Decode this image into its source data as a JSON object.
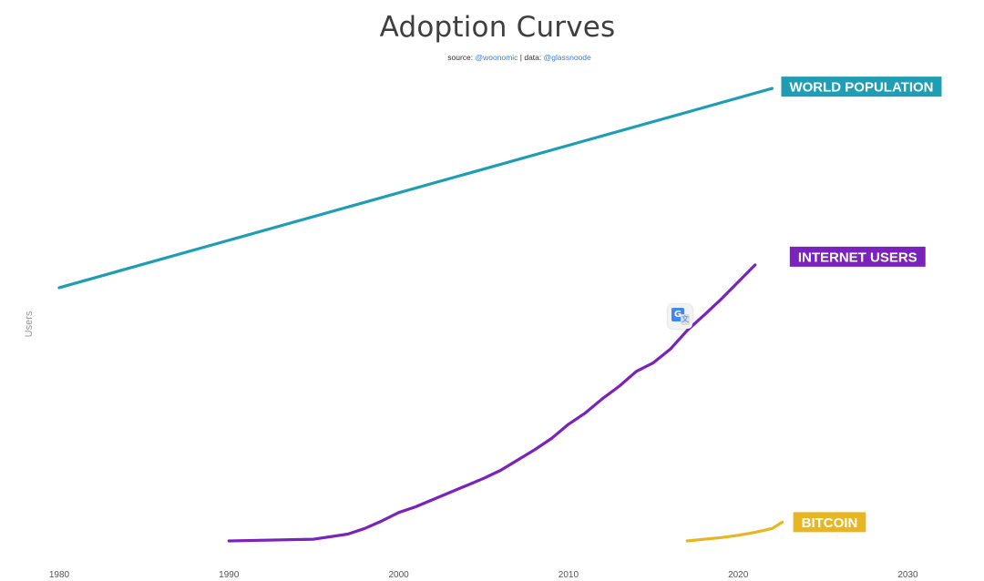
{
  "chart_data": {
    "type": "line",
    "title": "Adoption Curves",
    "source": {
      "prefix": "source: ",
      "author": "@woonomic",
      "separator": " | data: ",
      "data_provider": "@glassnoode"
    },
    "ylabel": "Users",
    "xlabel": "",
    "xlim": [
      1980,
      2030
    ],
    "x_ticks": [
      1980,
      1990,
      2000,
      2010,
      2020,
      2030
    ],
    "y_axis_tick_labels_shown": false,
    "grid": false,
    "legend": "direct labels at line ends",
    "series": [
      {
        "name": "WORLD POPULATION",
        "color": "#1e9db5",
        "points": [
          [
            1980,
            4.45
          ],
          [
            2022,
            7.95
          ]
        ]
      },
      {
        "name": "INTERNET USERS",
        "color": "#7b22bd",
        "points": [
          [
            1990,
            0.0
          ],
          [
            1995,
            0.03
          ],
          [
            1997,
            0.12
          ],
          [
            1998,
            0.22
          ],
          [
            1999,
            0.35
          ],
          [
            2000,
            0.5
          ],
          [
            2001,
            0.6
          ],
          [
            2003,
            0.85
          ],
          [
            2005,
            1.1
          ],
          [
            2006,
            1.24
          ],
          [
            2008,
            1.6
          ],
          [
            2009,
            1.8
          ],
          [
            2010,
            2.05
          ],
          [
            2011,
            2.25
          ],
          [
            2012,
            2.5
          ],
          [
            2013,
            2.72
          ],
          [
            2014,
            2.98
          ],
          [
            2015,
            3.13
          ],
          [
            2016,
            3.37
          ],
          [
            2017,
            3.7
          ],
          [
            2018,
            3.97
          ],
          [
            2019,
            4.25
          ],
          [
            2020,
            4.55
          ],
          [
            2021,
            4.85
          ]
        ]
      },
      {
        "name": "BITCOIN",
        "color": "#e9b623",
        "points": [
          [
            2017,
            0.0
          ],
          [
            2018,
            0.03
          ],
          [
            2019,
            0.06
          ],
          [
            2020,
            0.1
          ],
          [
            2021,
            0.15
          ],
          [
            2022,
            0.22
          ],
          [
            2022.6,
            0.33
          ]
        ]
      }
    ]
  },
  "overlay": {
    "translate_icon": "google-translate-icon",
    "translate_glyph": "G",
    "translate_sub_glyph": "文"
  }
}
